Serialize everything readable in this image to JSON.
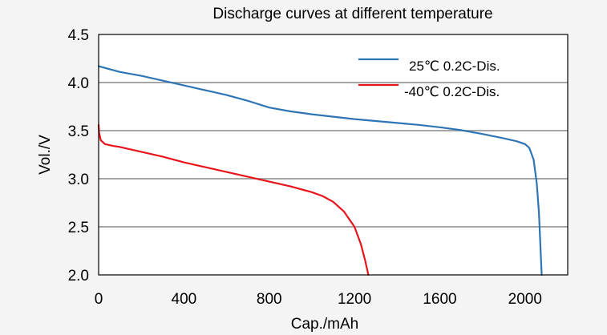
{
  "chart_data": {
    "type": "line",
    "title": "Discharge curves at different temperature",
    "xlabel": "Cap./mAh",
    "ylabel": "Vol./V",
    "xlim": [
      0,
      2200
    ],
    "ylim": [
      2.0,
      4.5
    ],
    "xticks": [
      "0",
      "400",
      "800",
      "1200",
      "1600",
      "2000"
    ],
    "xtick_values": [
      0,
      400,
      800,
      1200,
      1600,
      2000
    ],
    "yticks": [
      "2.0",
      "2.5",
      "3.0",
      "3.5",
      "4.0",
      "4.5"
    ],
    "ytick_values": [
      2.0,
      2.5,
      3.0,
      3.5,
      4.0,
      4.5
    ],
    "grid": "horizontal",
    "legend_position": "top-right",
    "series": [
      {
        "name": "25℃ 0.2C-Dis.",
        "color": "#2e75b6",
        "points": [
          [
            0,
            4.17
          ],
          [
            50,
            4.14
          ],
          [
            100,
            4.11
          ],
          [
            200,
            4.07
          ],
          [
            300,
            4.02
          ],
          [
            400,
            3.97
          ],
          [
            500,
            3.92
          ],
          [
            600,
            3.87
          ],
          [
            700,
            3.81
          ],
          [
            800,
            3.74
          ],
          [
            900,
            3.7
          ],
          [
            1000,
            3.67
          ],
          [
            1100,
            3.645
          ],
          [
            1200,
            3.62
          ],
          [
            1300,
            3.6
          ],
          [
            1400,
            3.58
          ],
          [
            1500,
            3.56
          ],
          [
            1600,
            3.535
          ],
          [
            1700,
            3.505
          ],
          [
            1800,
            3.465
          ],
          [
            1900,
            3.42
          ],
          [
            1960,
            3.39
          ],
          [
            2000,
            3.36
          ],
          [
            2020,
            3.32
          ],
          [
            2040,
            3.2
          ],
          [
            2055,
            2.95
          ],
          [
            2065,
            2.65
          ],
          [
            2072,
            2.3
          ],
          [
            2078,
            2.0
          ]
        ]
      },
      {
        "name": "-40℃ 0.2C-Dis.",
        "color": "#e8141b",
        "points": [
          [
            0,
            3.56
          ],
          [
            2,
            3.48
          ],
          [
            10,
            3.4
          ],
          [
            30,
            3.36
          ],
          [
            70,
            3.34
          ],
          [
            100,
            3.33
          ],
          [
            200,
            3.28
          ],
          [
            300,
            3.23
          ],
          [
            400,
            3.17
          ],
          [
            500,
            3.12
          ],
          [
            600,
            3.07
          ],
          [
            700,
            3.02
          ],
          [
            800,
            2.97
          ],
          [
            900,
            2.92
          ],
          [
            1000,
            2.86
          ],
          [
            1050,
            2.82
          ],
          [
            1100,
            2.76
          ],
          [
            1150,
            2.66
          ],
          [
            1200,
            2.5
          ],
          [
            1230,
            2.32
          ],
          [
            1250,
            2.15
          ],
          [
            1265,
            2.0
          ]
        ]
      }
    ]
  }
}
